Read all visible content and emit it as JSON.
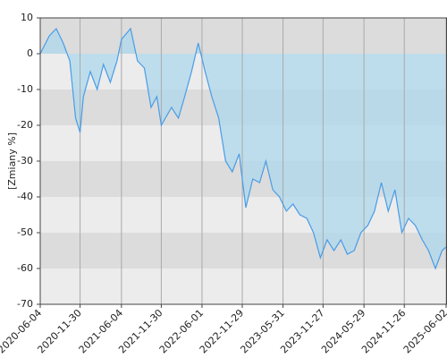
{
  "chart_data": {
    "type": "area-line",
    "y_label": "[Zmiany %]",
    "x": [
      "2020-06-04",
      "2020-07-15",
      "2020-08-15",
      "2020-09-15",
      "2020-10-15",
      "2020-11-10",
      "2020-11-30",
      "2020-12-15",
      "2021-01-15",
      "2021-02-15",
      "2021-03-15",
      "2021-04-15",
      "2021-05-15",
      "2021-06-04",
      "2021-07-15",
      "2021-08-15",
      "2021-09-15",
      "2021-10-15",
      "2021-11-10",
      "2021-11-30",
      "2022-01-15",
      "2022-02-15",
      "2022-03-15",
      "2022-04-15",
      "2022-05-15",
      "2022-06-15",
      "2022-07-15",
      "2022-08-15",
      "2022-09-15",
      "2022-10-15",
      "2022-11-15",
      "2022-12-15",
      "2023-01-15",
      "2023-02-15",
      "2023-03-15",
      "2023-04-15",
      "2023-05-15",
      "2023-06-15",
      "2023-07-15",
      "2023-08-15",
      "2023-09-15",
      "2023-10-15",
      "2023-11-15",
      "2023-12-15",
      "2024-01-15",
      "2024-02-15",
      "2024-03-15",
      "2024-04-15",
      "2024-05-15",
      "2024-06-15",
      "2024-07-15",
      "2024-08-15",
      "2024-09-15",
      "2024-10-15",
      "2024-11-15",
      "2024-12-15",
      "2025-01-15",
      "2025-02-15",
      "2025-03-15",
      "2025-04-15",
      "2025-05-15",
      "2025-06-02"
    ],
    "series": [
      {
        "color": "#4a9be6",
        "fill": "#add8ec",
        "values": [
          0,
          5,
          7,
          3,
          -2,
          -18,
          -22,
          -12,
          -5,
          -10,
          -3,
          -8,
          -2,
          4,
          7,
          -2,
          -4,
          -15,
          -12,
          -20,
          -15,
          -18,
          -12,
          -5,
          3,
          -5,
          -12,
          -18,
          -30,
          -33,
          -28,
          -43,
          -35,
          -36,
          -30,
          -38,
          -40,
          -44,
          -42,
          -45,
          -46,
          -50,
          -57,
          -52,
          -55,
          -52,
          -56,
          -55,
          -50,
          -48,
          -44,
          -36,
          -44,
          -38,
          -50,
          -46,
          -48,
          -52,
          -55,
          -60,
          -55,
          -54
        ]
      }
    ],
    "xlim": [
      "2020-06-04",
      "2025-06-06"
    ],
    "xticks": [
      "2020-06-04",
      "2020-11-30",
      "2021-06-04",
      "2021-11-30",
      "2022-06-01",
      "2022-11-29",
      "2023-05-31",
      "2023-11-27",
      "2024-05-29",
      "2024-11-26",
      "2025-06-02"
    ],
    "ylim": [
      -70,
      10
    ],
    "yticks": [
      -70,
      -60,
      -50,
      -40,
      -30,
      -20,
      -10,
      0,
      10
    ],
    "grid": true
  }
}
